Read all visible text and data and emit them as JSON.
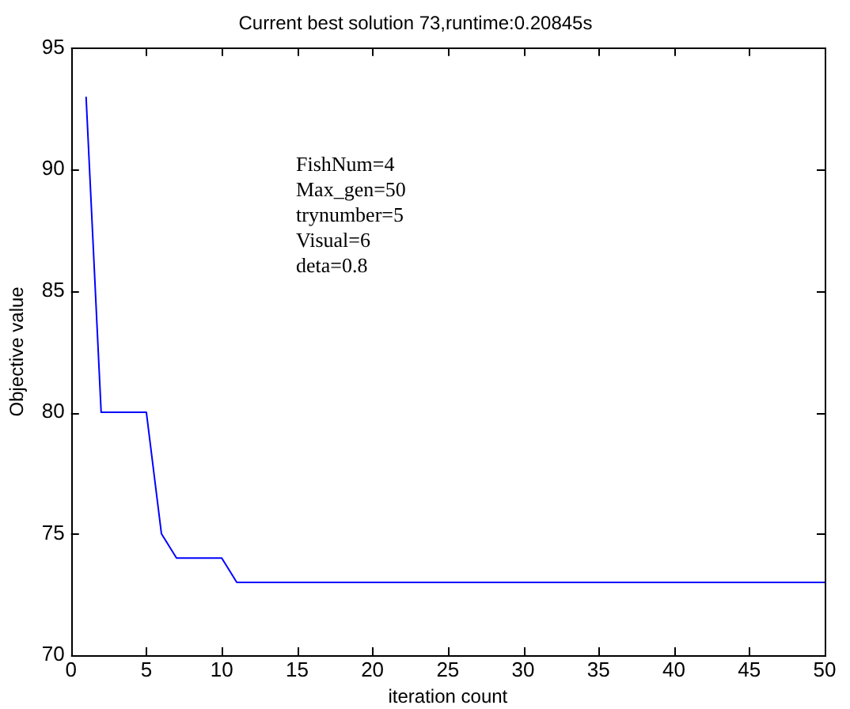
{
  "chart_data": {
    "type": "line",
    "title": "Current best solution 73,runtime:0.20845s",
    "xlabel": "iteration count",
    "ylabel": "Objective value",
    "annotations": [
      "FishNum=4",
      "Max_gen=50",
      "trynumber=5",
      "Visual=6",
      "deta=0.8"
    ],
    "x": [
      1,
      2,
      3,
      4,
      5,
      6,
      7,
      8,
      9,
      10,
      11,
      12,
      13,
      14,
      15,
      16,
      17,
      18,
      19,
      20,
      21,
      22,
      23,
      24,
      25,
      26,
      27,
      28,
      29,
      30,
      31,
      32,
      33,
      34,
      35,
      36,
      37,
      38,
      39,
      40,
      41,
      42,
      43,
      44,
      45,
      46,
      47,
      48,
      49,
      50
    ],
    "series": [
      {
        "color": "#0000ff",
        "values": [
          93,
          80,
          80,
          80,
          80,
          75,
          74,
          74,
          74,
          74,
          73,
          73,
          73,
          73,
          73,
          73,
          73,
          73,
          73,
          73,
          73,
          73,
          73,
          73,
          73,
          73,
          73,
          73,
          73,
          73,
          73,
          73,
          73,
          73,
          73,
          73,
          73,
          73,
          73,
          73,
          73,
          73,
          73,
          73,
          73,
          73,
          73,
          73,
          73,
          73
        ]
      }
    ],
    "xlim": [
      0,
      50
    ],
    "xticks": [
      0,
      5,
      10,
      15,
      20,
      25,
      30,
      35,
      40,
      45,
      50
    ],
    "ylim": [
      70,
      95
    ],
    "yticks": [
      70,
      75,
      80,
      85,
      90,
      95
    ],
    "grid": false,
    "legend": false,
    "marker": "none",
    "line_style": "solid"
  }
}
